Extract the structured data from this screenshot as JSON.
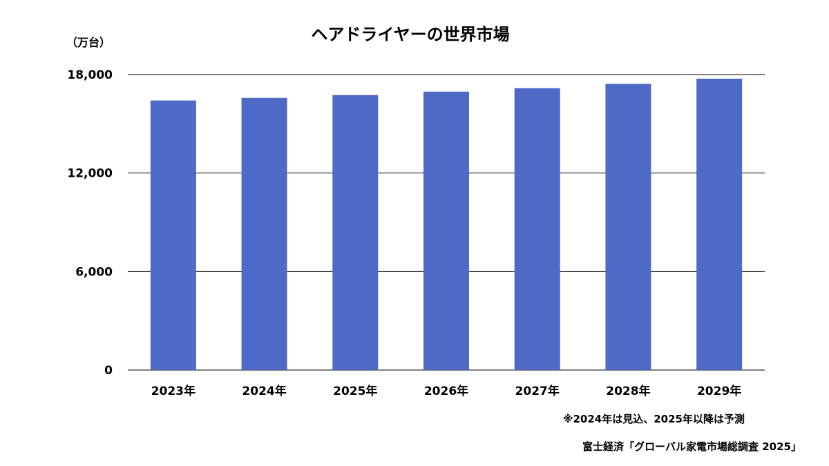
{
  "chart_data": {
    "type": "bar",
    "title": "ヘアドライヤーの世界市場",
    "unit_label": "（万台）",
    "categories": [
      "2023年",
      "2024年",
      "2025年",
      "2026年",
      "2027年",
      "2028年",
      "2029年"
    ],
    "values": [
      16420,
      16580,
      16750,
      16960,
      17170,
      17430,
      17750
    ],
    "ylim": [
      0,
      18000
    ],
    "yticks": [
      0,
      6000,
      12000,
      18000
    ],
    "ytick_labels": [
      "0",
      "6,000",
      "12,000",
      "18,000"
    ],
    "grid": true,
    "bar_color": "#4f69c6"
  },
  "notes": {
    "forecast_note": "※2024年は見込、2025年以降は予測",
    "source": "富士経済「グローバル家電市場総調査 2025」"
  }
}
